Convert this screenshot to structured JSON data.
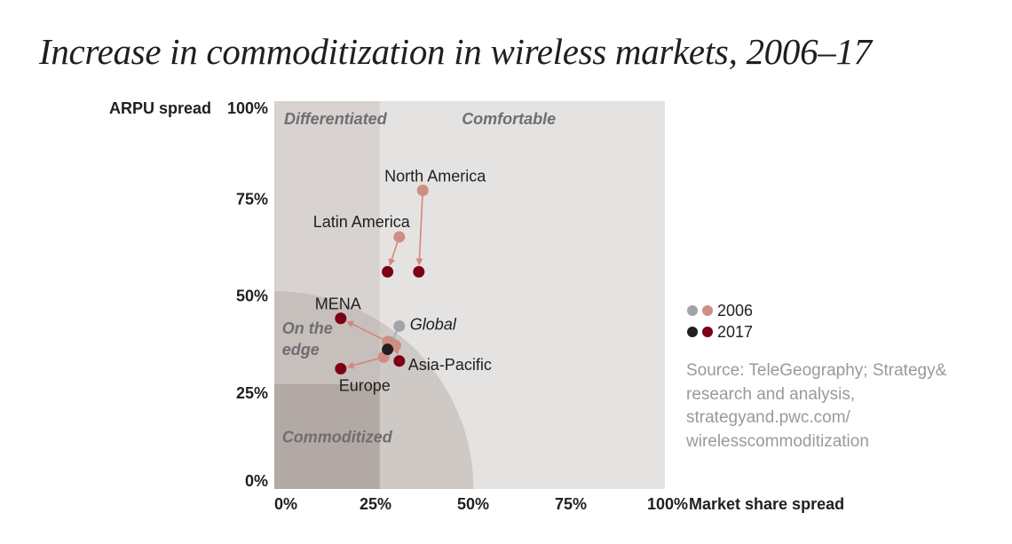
{
  "title": "Increase in commoditization in wireless markets, 2006–17",
  "colors": {
    "region_light": "#e5e3e2",
    "region_differentiated": "#d8d3d0",
    "region_edge": "#cfc9c6",
    "region_commoditized": "#b3a9a4",
    "region_label": "#6e6e72",
    "regional_2006": "#cf8e84",
    "regional_2017": "#7b0016",
    "global_2006": "#a3a4a7",
    "global_2017": "#231f20",
    "arrow": "#d4877c",
    "arrow_global": "#a3a4a7"
  },
  "legend": {
    "items": [
      {
        "label": "2006",
        "colors": [
          "#a3a4a7",
          "#cf8e84"
        ]
      },
      {
        "label": "2017",
        "colors": [
          "#231f20",
          "#7b0016"
        ]
      }
    ]
  },
  "source": "Source: TeleGeography; Strategy& research and analysis, strategyand.pwc.com/ wirelesscommoditization",
  "chart_data": {
    "type": "scatter",
    "title": "Increase in commoditization in wireless markets, 2006–17",
    "xlabel": "Market share spread",
    "ylabel": "ARPU spread",
    "xlim": [
      0,
      100
    ],
    "ylim": [
      0,
      100
    ],
    "x_ticks": [
      "0%",
      "25%",
      "50%",
      "75%",
      "100%"
    ],
    "y_ticks": [
      "0%",
      "25%",
      "50%",
      "75%",
      "100%"
    ],
    "x_tick_values": [
      0,
      25,
      50,
      75,
      100
    ],
    "y_tick_values": [
      0,
      25,
      50,
      75,
      100
    ],
    "grid": false,
    "legend_position": "right",
    "regions": [
      {
        "name": "Comfortable",
        "label": "Comfortable",
        "shape": "rect",
        "x": [
          0,
          100
        ],
        "y": [
          0,
          100
        ],
        "color_key": "region_light",
        "label_pos": [
          48,
          94
        ]
      },
      {
        "name": "Differentiated",
        "label": "Differentiated",
        "shape": "rect",
        "x": [
          0,
          27
        ],
        "y": [
          0,
          100
        ],
        "color_key": "region_differentiated",
        "label_pos": [
          2.5,
          94
        ]
      },
      {
        "name": "On the edge",
        "label": "On the\nedge",
        "shape": "quarter-circle",
        "radius": 51,
        "color_key": "region_edge",
        "label_pos": [
          2,
          40
        ]
      },
      {
        "name": "Commoditized",
        "label": "Commoditized",
        "shape": "rect",
        "x": [
          0,
          27
        ],
        "y": [
          0,
          27
        ],
        "color_key": "region_commoditized",
        "label_pos": [
          2,
          12
        ]
      }
    ],
    "series": [
      {
        "name": "North America",
        "label_pos": "above",
        "points": [
          {
            "year": 2006,
            "x": 38,
            "y": 77
          },
          {
            "year": 2017,
            "x": 37,
            "y": 56
          }
        ],
        "type": "regional"
      },
      {
        "name": "Latin America",
        "label_pos": "above-left",
        "points": [
          {
            "year": 2006,
            "x": 32,
            "y": 65
          },
          {
            "year": 2017,
            "x": 29,
            "y": 56
          }
        ],
        "type": "regional"
      },
      {
        "name": "Global",
        "label_pos": "right",
        "italic": true,
        "points": [
          {
            "year": 2006,
            "x": 32,
            "y": 42
          },
          {
            "year": 2017,
            "x": 29,
            "y": 36
          }
        ],
        "type": "global"
      },
      {
        "name": "MENA",
        "label_pos": "above",
        "points": [
          {
            "year": 2006,
            "x": 29,
            "y": 38
          },
          {
            "year": 2017,
            "x": 17,
            "y": 44
          }
        ],
        "type": "regional"
      },
      {
        "name": "Europe",
        "label_pos": "below",
        "points": [
          {
            "year": 2006,
            "x": 28,
            "y": 34
          },
          {
            "year": 2017,
            "x": 17,
            "y": 31
          }
        ],
        "type": "regional"
      },
      {
        "name": "Asia-Pacific",
        "label_pos": "right",
        "points": [
          {
            "year": 2006,
            "x": 31,
            "y": 37
          },
          {
            "year": 2017,
            "x": 32,
            "y": 33
          }
        ],
        "type": "regional"
      }
    ]
  }
}
